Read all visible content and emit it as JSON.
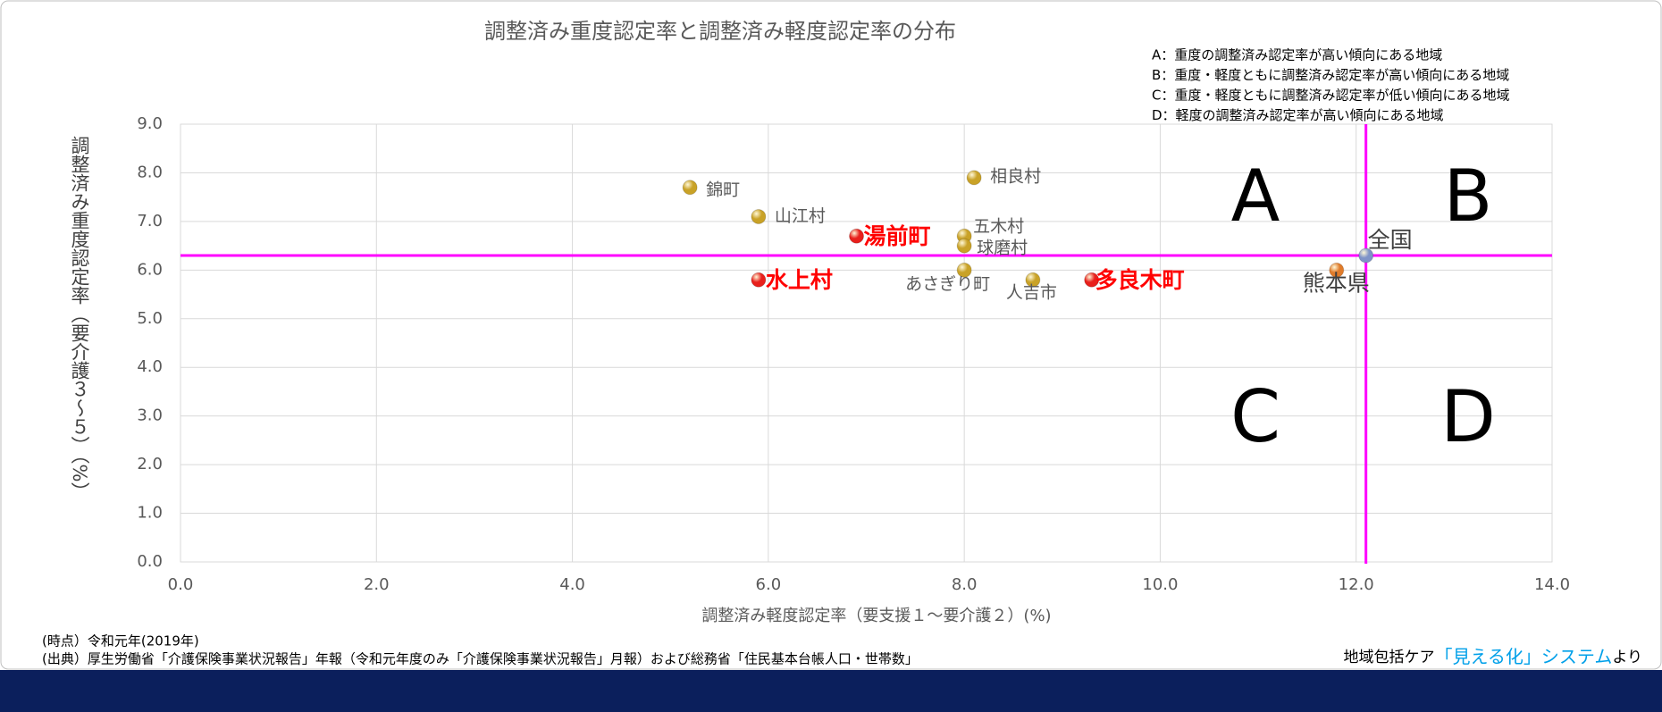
{
  "chart_data": {
    "type": "scatter",
    "title": "調整済み重度認定率と調整済み軽度認定率の分布",
    "x_label": "調整済み軽度認定率（要支援１～要介護２）(%)",
    "y_label": "調整済み重度認定率（要介護３～５）（%）",
    "xlim": [
      0,
      14
    ],
    "ylim": [
      0,
      9
    ],
    "xticks": [
      {
        "value": 0,
        "label": "0.0"
      },
      {
        "value": 2,
        "label": "2.0"
      },
      {
        "value": 4,
        "label": "4.0"
      },
      {
        "value": 6,
        "label": "6.0"
      },
      {
        "value": 8,
        "label": "8.0"
      },
      {
        "value": 10,
        "label": "10.0"
      },
      {
        "value": 12,
        "label": "12.0"
      },
      {
        "value": 14,
        "label": "14.0"
      }
    ],
    "yticks": [
      {
        "value": 0,
        "label": "0.0"
      },
      {
        "value": 1,
        "label": "1.0"
      },
      {
        "value": 2,
        "label": "2.0"
      },
      {
        "value": 3,
        "label": "3.0"
      },
      {
        "value": 4,
        "label": "4.0"
      },
      {
        "value": 5,
        "label": "5.0"
      },
      {
        "value": 6,
        "label": "6.0"
      },
      {
        "value": 7,
        "label": "7.0"
      },
      {
        "value": 8,
        "label": "8.0"
      },
      {
        "value": 9,
        "label": "9.0"
      }
    ],
    "grid": true,
    "reference_lines": {
      "x": 12.1,
      "y": 6.3,
      "color": "#ff00ff"
    },
    "points": [
      {
        "label": "錦町",
        "x": 5.2,
        "y": 7.7,
        "color": "#c9a227",
        "label_color": "#595959",
        "emphasis": false
      },
      {
        "label": "山江村",
        "x": 5.9,
        "y": 7.1,
        "color": "#c9a227",
        "label_color": "#595959",
        "emphasis": false
      },
      {
        "label": "湯前町",
        "x": 6.9,
        "y": 6.7,
        "color": "#e8201c",
        "label_color": "#ff0000",
        "emphasis": true
      },
      {
        "label": "水上村",
        "x": 5.9,
        "y": 5.8,
        "color": "#e8201c",
        "label_color": "#ff0000",
        "emphasis": true
      },
      {
        "label": "相良村",
        "x": 8.1,
        "y": 7.9,
        "color": "#c9a227",
        "label_color": "#595959",
        "emphasis": false
      },
      {
        "label": "五木村",
        "x": 8.0,
        "y": 6.7,
        "color": "#c9a227",
        "label_color": "#595959",
        "emphasis": false
      },
      {
        "label": "球磨村",
        "x": 8.0,
        "y": 6.5,
        "color": "#c9a227",
        "label_color": "#595959",
        "emphasis": false
      },
      {
        "label": "あさぎり町",
        "x": 8.0,
        "y": 6.0,
        "color": "#c9a227",
        "label_color": "#595959",
        "emphasis": false
      },
      {
        "label": "人吉市",
        "x": 8.7,
        "y": 5.8,
        "color": "#c9a227",
        "label_color": "#595959",
        "emphasis": false
      },
      {
        "label": "多良木町",
        "x": 9.3,
        "y": 5.8,
        "color": "#e8201c",
        "label_color": "#ff0000",
        "emphasis": true
      },
      {
        "label": "熊本県",
        "x": 11.8,
        "y": 6.0,
        "color": "#e07b2a",
        "label_color": "#404040",
        "emphasis": true
      },
      {
        "label": "全国",
        "x": 12.1,
        "y": 6.3,
        "color": "#7f93c8",
        "label_color": "#404040",
        "emphasis": true
      }
    ],
    "quadrants": [
      "A",
      "B",
      "C",
      "D"
    ],
    "legend": [
      "A：重度の調整済み認定率が高い傾向にある地域",
      "B：重度・軽度ともに調整済み認定率が高い傾向にある地域",
      "C：重度・軽度ともに調整済み認定率が低い傾向にある地域",
      "D：軽度の調整済み認定率が高い傾向にある地域"
    ],
    "notes": [
      "(時点）令和元年(2019年)",
      "(出典）厚生労働省「介護保険事業状況報告」年報（令和元年度のみ「介護保険事業状況報告」月報）および総務省「住民基本台帳人口・世帯数」"
    ],
    "source": {
      "prefix": "地域包括ケア",
      "highlight": "「見える化」システム",
      "suffix": "より"
    }
  }
}
